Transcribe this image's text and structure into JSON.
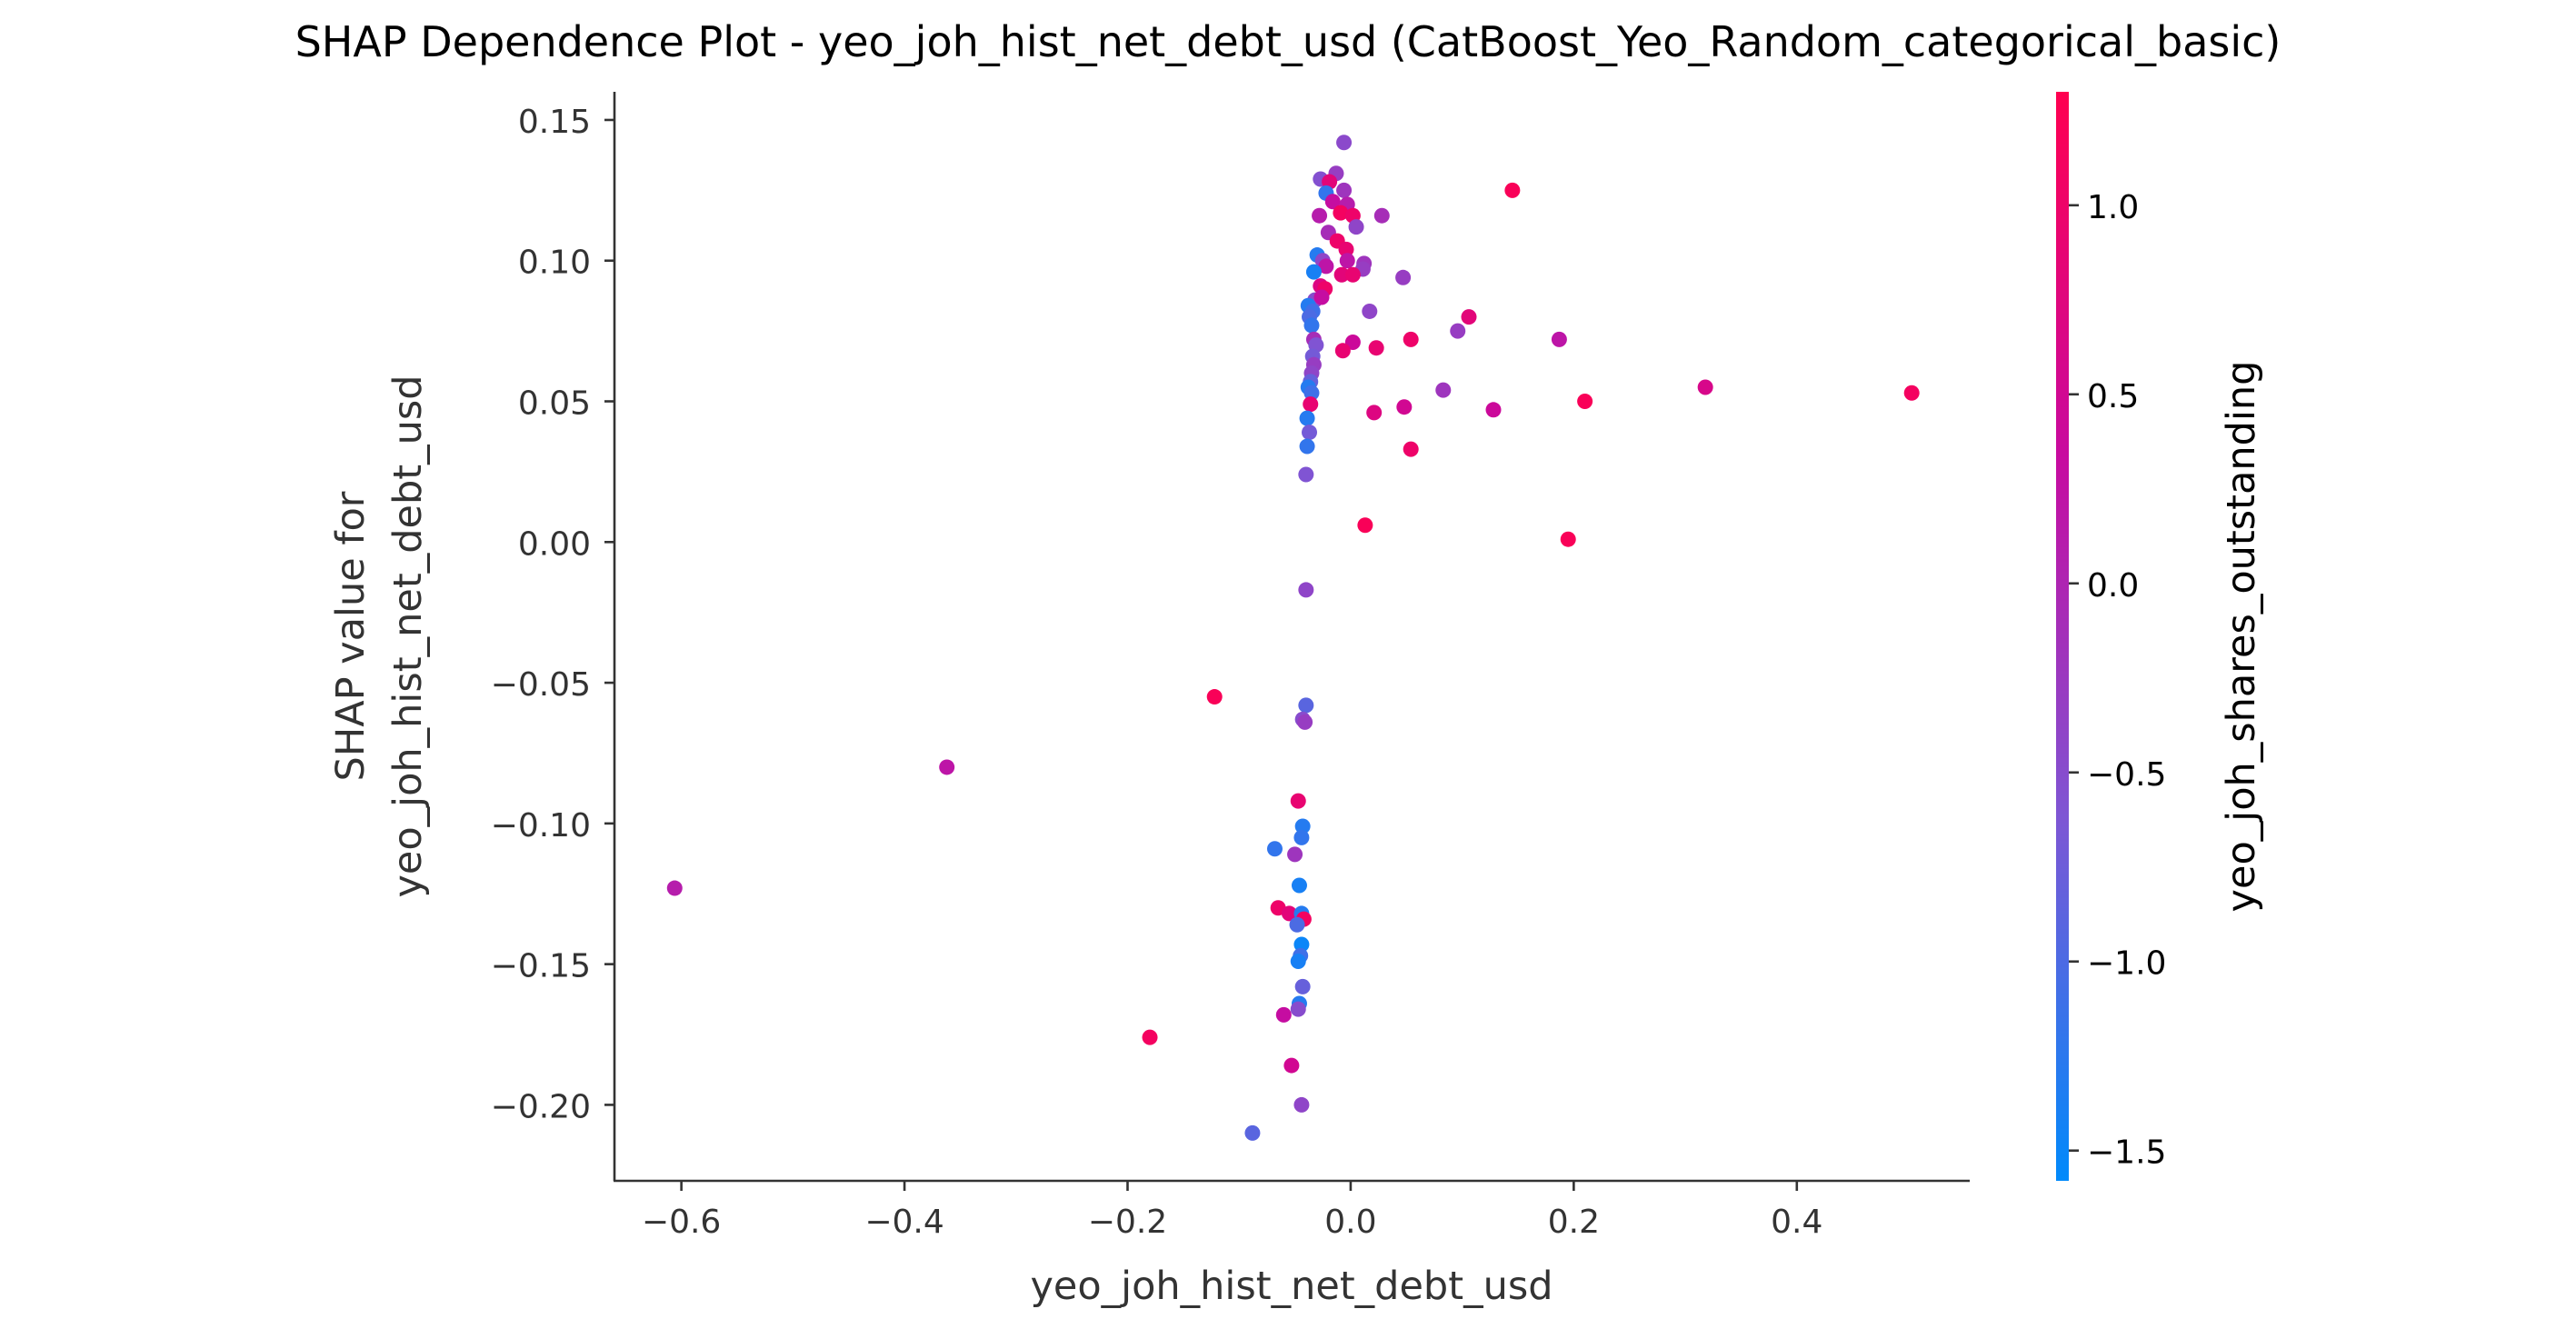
{
  "chart_data": {
    "type": "scatter",
    "title": "SHAP Dependence Plot - yeo_joh_hist_net_debt_usd (CatBoost_Yeo_Random_categorical_basic)",
    "xlabel": "yeo_joh_hist_net_debt_usd",
    "ylabel_lines": [
      "SHAP value for",
      "yeo_joh_hist_net_debt_usd"
    ],
    "colorbar_label": "yeo_joh_shares_outstanding",
    "xlim": [
      -0.66,
      0.555
    ],
    "ylim": [
      -0.227,
      0.16
    ],
    "clim": [
      -1.58,
      1.3
    ],
    "x_ticks": [
      -0.6,
      -0.4,
      -0.2,
      0.0,
      0.2,
      0.4
    ],
    "x_tick_labels": [
      "−0.6",
      "−0.4",
      "−0.2",
      "0.0",
      "0.2",
      "0.4"
    ],
    "y_ticks": [
      -0.2,
      -0.15,
      -0.1,
      -0.05,
      0.0,
      0.05,
      0.1,
      0.15
    ],
    "y_tick_labels": [
      "−0.20",
      "−0.15",
      "−0.10",
      "−0.05",
      "0.00",
      "0.05",
      "0.10",
      "0.15"
    ],
    "c_ticks": [
      -1.5,
      -1.0,
      -0.5,
      0.0,
      0.5,
      1.0
    ],
    "c_tick_labels": [
      "−1.5",
      "−1.0",
      "−0.5",
      "0.0",
      "0.5",
      "1.0"
    ],
    "colormap": [
      "#008afb",
      "#7e56d4",
      "#c80a9f",
      "#ff0050"
    ],
    "points": [
      {
        "x": -0.006,
        "y": 0.142,
        "c": -0.45
      },
      {
        "x": -0.013,
        "y": 0.131,
        "c": -0.3
      },
      {
        "x": -0.027,
        "y": 0.129,
        "c": -0.55
      },
      {
        "x": -0.019,
        "y": 0.128,
        "c": 0.8
      },
      {
        "x": -0.006,
        "y": 0.125,
        "c": -0.2
      },
      {
        "x": -0.022,
        "y": 0.124,
        "c": -1.2
      },
      {
        "x": -0.016,
        "y": 0.121,
        "c": 0.3
      },
      {
        "x": -0.003,
        "y": 0.12,
        "c": 0.1
      },
      {
        "x": -0.009,
        "y": 0.117,
        "c": 1.1
      },
      {
        "x": -0.028,
        "y": 0.116,
        "c": 0.1
      },
      {
        "x": 0.002,
        "y": 0.116,
        "c": 1.0
      },
      {
        "x": 0.028,
        "y": 0.116,
        "c": -0.1
      },
      {
        "x": 0.005,
        "y": 0.112,
        "c": -0.4
      },
      {
        "x": -0.02,
        "y": 0.11,
        "c": -0.1
      },
      {
        "x": 0.145,
        "y": 0.125,
        "c": 1.2
      },
      {
        "x": -0.012,
        "y": 0.107,
        "c": 1.0
      },
      {
        "x": -0.004,
        "y": 0.104,
        "c": 0.9
      },
      {
        "x": -0.03,
        "y": 0.102,
        "c": -1.3
      },
      {
        "x": -0.025,
        "y": 0.1,
        "c": -0.4
      },
      {
        "x": -0.003,
        "y": 0.1,
        "c": 0.2
      },
      {
        "x": -0.022,
        "y": 0.098,
        "c": 0.2
      },
      {
        "x": 0.012,
        "y": 0.099,
        "c": -0.2
      },
      {
        "x": 0.011,
        "y": 0.097,
        "c": -0.3
      },
      {
        "x": -0.033,
        "y": 0.096,
        "c": -1.4
      },
      {
        "x": -0.008,
        "y": 0.095,
        "c": 0.8
      },
      {
        "x": 0.002,
        "y": 0.095,
        "c": 0.9
      },
      {
        "x": 0.047,
        "y": 0.094,
        "c": -0.3
      },
      {
        "x": -0.027,
        "y": 0.091,
        "c": 0.7
      },
      {
        "x": -0.023,
        "y": 0.09,
        "c": 1.0
      },
      {
        "x": -0.032,
        "y": 0.086,
        "c": -0.5
      },
      {
        "x": -0.026,
        "y": 0.087,
        "c": 0.3
      },
      {
        "x": -0.038,
        "y": 0.084,
        "c": -1.3
      },
      {
        "x": -0.034,
        "y": 0.082,
        "c": -1.1
      },
      {
        "x": 0.017,
        "y": 0.082,
        "c": -0.4
      },
      {
        "x": 0.106,
        "y": 0.08,
        "c": 0.8
      },
      {
        "x": -0.037,
        "y": 0.08,
        "c": -1.0
      },
      {
        "x": -0.035,
        "y": 0.077,
        "c": -1.2
      },
      {
        "x": 0.096,
        "y": 0.075,
        "c": -0.3
      },
      {
        "x": 0.187,
        "y": 0.072,
        "c": 0.2
      },
      {
        "x": 0.054,
        "y": 0.072,
        "c": 1.0
      },
      {
        "x": -0.033,
        "y": 0.072,
        "c": -0.1
      },
      {
        "x": -0.031,
        "y": 0.07,
        "c": -0.6
      },
      {
        "x": 0.002,
        "y": 0.071,
        "c": 0.4
      },
      {
        "x": 0.023,
        "y": 0.069,
        "c": 0.9
      },
      {
        "x": -0.007,
        "y": 0.068,
        "c": 0.9
      },
      {
        "x": -0.034,
        "y": 0.066,
        "c": -0.7
      },
      {
        "x": -0.033,
        "y": 0.063,
        "c": -0.3
      },
      {
        "x": -0.035,
        "y": 0.06,
        "c": -0.4
      },
      {
        "x": -0.036,
        "y": 0.057,
        "c": -0.8
      },
      {
        "x": -0.038,
        "y": 0.055,
        "c": -1.3
      },
      {
        "x": -0.035,
        "y": 0.053,
        "c": -1.1
      },
      {
        "x": 0.083,
        "y": 0.054,
        "c": -0.2
      },
      {
        "x": 0.318,
        "y": 0.055,
        "c": 0.6
      },
      {
        "x": 0.503,
        "y": 0.053,
        "c": 1.1
      },
      {
        "x": 0.21,
        "y": 0.05,
        "c": 1.2
      },
      {
        "x": -0.036,
        "y": 0.049,
        "c": 0.9
      },
      {
        "x": 0.048,
        "y": 0.048,
        "c": 0.5
      },
      {
        "x": 0.128,
        "y": 0.047,
        "c": 0.4
      },
      {
        "x": 0.021,
        "y": 0.046,
        "c": 0.7
      },
      {
        "x": -0.039,
        "y": 0.044,
        "c": -1.3
      },
      {
        "x": -0.037,
        "y": 0.039,
        "c": -0.7
      },
      {
        "x": -0.039,
        "y": 0.034,
        "c": -1.2
      },
      {
        "x": 0.054,
        "y": 0.033,
        "c": 1.0
      },
      {
        "x": -0.04,
        "y": 0.024,
        "c": -0.6
      },
      {
        "x": 0.013,
        "y": 0.006,
        "c": 1.2
      },
      {
        "x": 0.195,
        "y": 0.001,
        "c": 1.2
      },
      {
        "x": -0.04,
        "y": -0.017,
        "c": -0.4
      },
      {
        "x": -0.122,
        "y": -0.055,
        "c": 1.2
      },
      {
        "x": -0.04,
        "y": -0.058,
        "c": -0.9
      },
      {
        "x": -0.043,
        "y": -0.063,
        "c": -0.5
      },
      {
        "x": -0.041,
        "y": -0.064,
        "c": -0.3
      },
      {
        "x": -0.362,
        "y": -0.08,
        "c": 0.2
      },
      {
        "x": -0.047,
        "y": -0.092,
        "c": 0.9
      },
      {
        "x": -0.043,
        "y": -0.101,
        "c": -1.3
      },
      {
        "x": -0.044,
        "y": -0.105,
        "c": -1.2
      },
      {
        "x": -0.068,
        "y": -0.109,
        "c": -1.2
      },
      {
        "x": -0.05,
        "y": -0.111,
        "c": -0.2
      },
      {
        "x": -0.606,
        "y": -0.123,
        "c": 0.1
      },
      {
        "x": -0.046,
        "y": -0.122,
        "c": -1.4
      },
      {
        "x": -0.065,
        "y": -0.13,
        "c": 1.0
      },
      {
        "x": -0.055,
        "y": -0.132,
        "c": 0.8
      },
      {
        "x": -0.044,
        "y": -0.132,
        "c": -1.3
      },
      {
        "x": -0.042,
        "y": -0.134,
        "c": 1.1
      },
      {
        "x": -0.048,
        "y": -0.136,
        "c": -1.0
      },
      {
        "x": -0.044,
        "y": -0.143,
        "c": -1.5
      },
      {
        "x": -0.045,
        "y": -0.147,
        "c": -1.1
      },
      {
        "x": -0.047,
        "y": -0.149,
        "c": -1.4
      },
      {
        "x": -0.043,
        "y": -0.158,
        "c": -0.8
      },
      {
        "x": -0.046,
        "y": -0.164,
        "c": -1.3
      },
      {
        "x": -0.047,
        "y": -0.166,
        "c": -0.5
      },
      {
        "x": -0.06,
        "y": -0.168,
        "c": 0.3
      },
      {
        "x": -0.18,
        "y": -0.176,
        "c": 1.1
      },
      {
        "x": -0.053,
        "y": -0.186,
        "c": 0.5
      },
      {
        "x": -0.044,
        "y": -0.2,
        "c": -0.4
      },
      {
        "x": -0.088,
        "y": -0.21,
        "c": -0.9
      }
    ]
  }
}
